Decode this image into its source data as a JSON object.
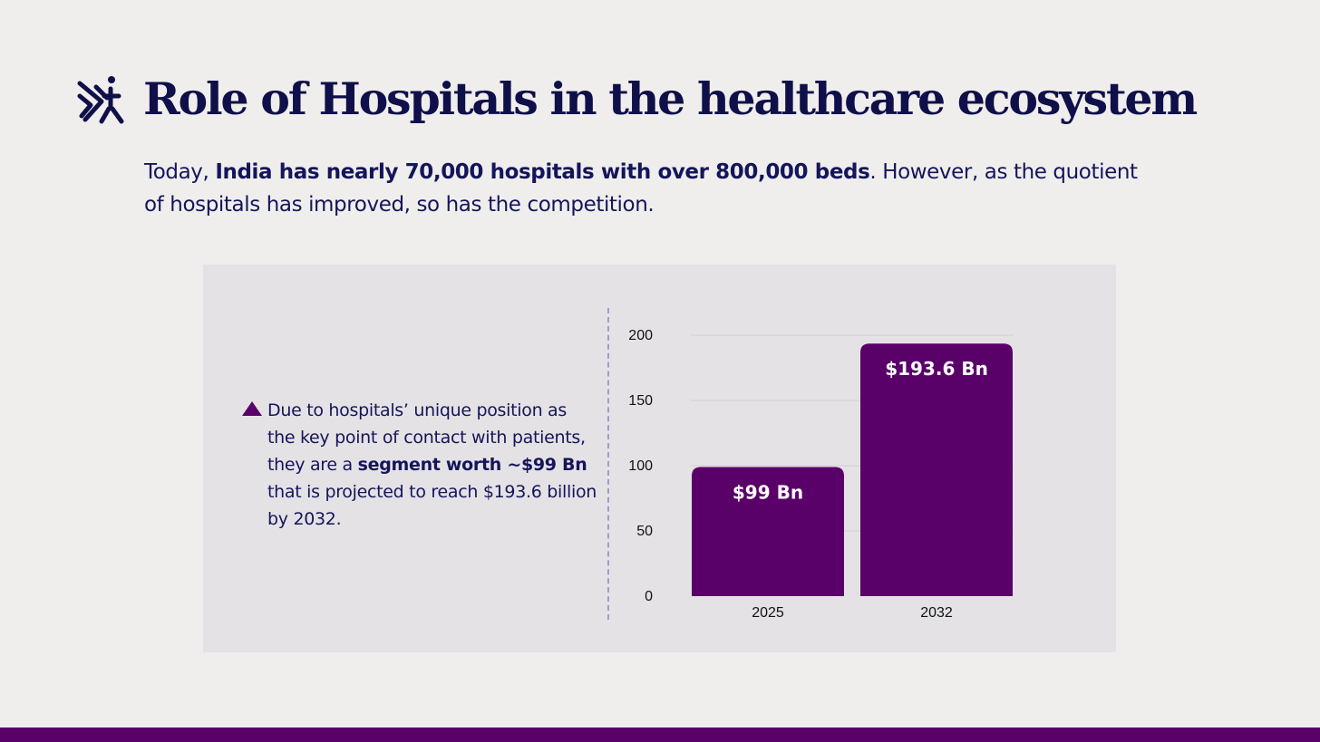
{
  "slide": {
    "title": "Role of Hospitals in the healthcare ecosystem",
    "intro": {
      "prefix": "Today, ",
      "bold": "India has nearly 70,000 hospitals with over 800,000 beds",
      "suffix": ". However, as the quotient of hospitals has improved, so has the competition."
    },
    "bullet": {
      "prefix": "Due to hospitals’ unique position as the key point of contact with patients, they are a ",
      "bold": "segment worth ~$99 Bn",
      "suffix": " that is projected to reach $193.6 billion by 2032."
    }
  },
  "colors": {
    "accent": "#5a0069",
    "navy": "#15155a",
    "background": "#efeeec",
    "panel": "#e4e2e5"
  },
  "icons": {
    "logo": "hospital-logo-icon",
    "bullet": "triangle-bullet-icon"
  },
  "chart_data": {
    "type": "bar",
    "categories": [
      "2025",
      "2032"
    ],
    "values": [
      99,
      193.6
    ],
    "data_labels": [
      "$99 Bn",
      "$193.6 Bn"
    ],
    "yticks": [
      0,
      50,
      100,
      150,
      200
    ],
    "ylim": [
      0,
      200
    ],
    "grid": true,
    "legend": "none"
  }
}
